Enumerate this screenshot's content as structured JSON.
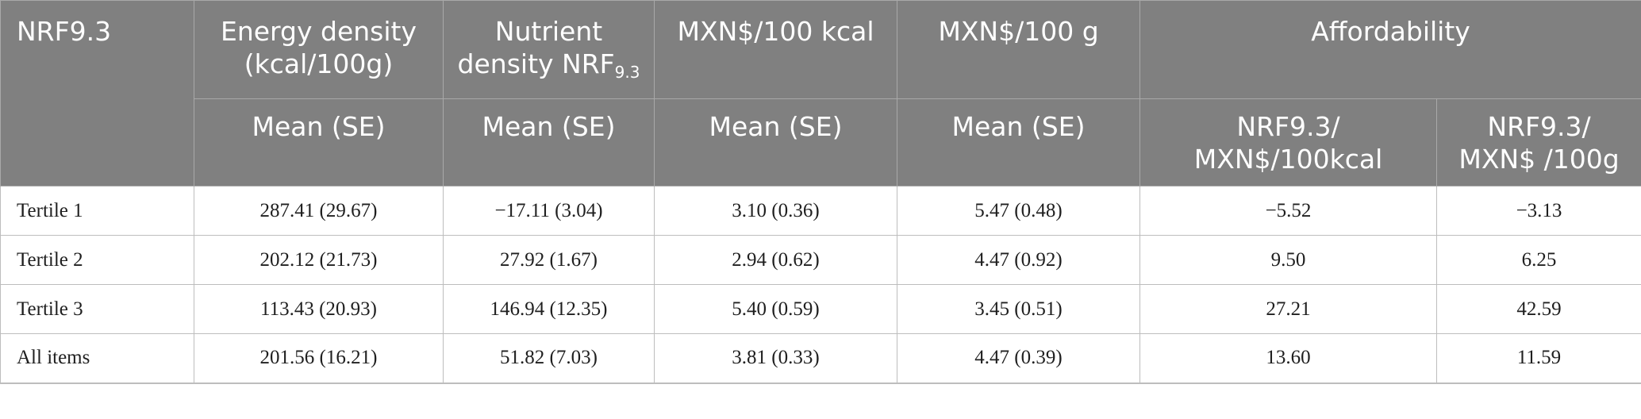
{
  "header": {
    "col0": "NRF9.3",
    "col1": "Energy density (kcal/100g)",
    "col2_main": "Nutrient density NRF",
    "col2_sub": "9.3",
    "col3": "MXN$/100 kcal",
    "col4": "MXN$/100 g",
    "col5": "Affordability",
    "sub1": "Mean (SE)",
    "sub2": "Mean (SE)",
    "sub3": "Mean (SE)",
    "sub4": "Mean (SE)",
    "sub5": "NRF9.3/ MXN$/100kcal",
    "sub6": "NRF9.3/ MXN$ /100g"
  },
  "rows": [
    {
      "label": "Tertile 1",
      "energy": "287.41 (29.67)",
      "nrf": "−17.11 (3.04)",
      "per_kcal": "3.10 (0.36)",
      "per_g": "5.47 (0.48)",
      "aff_kcal": "−5.52",
      "aff_g": "−3.13"
    },
    {
      "label": "Tertile 2",
      "energy": "202.12 (21.73)",
      "nrf": "27.92 (1.67)",
      "per_kcal": "2.94 (0.62)",
      "per_g": "4.47 (0.92)",
      "aff_kcal": "9.50",
      "aff_g": "6.25"
    },
    {
      "label": "Tertile 3",
      "energy": "113.43 (20.93)",
      "nrf": "146.94 (12.35)",
      "per_kcal": "5.40 (0.59)",
      "per_g": "3.45 (0.51)",
      "aff_kcal": "27.21",
      "aff_g": "42.59"
    },
    {
      "label": "All items",
      "energy": "201.56 (16.21)",
      "nrf": "51.82 (7.03)",
      "per_kcal": "3.81 (0.33)",
      "per_g": "4.47 (0.39)",
      "aff_kcal": "13.60",
      "aff_g": "11.59"
    }
  ]
}
